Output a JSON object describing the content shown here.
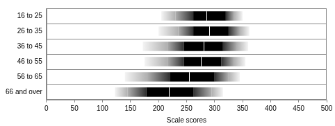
{
  "chart_data": {
    "type": "bar",
    "orientation": "horizontal",
    "x_label": "Scale scores",
    "categories": [
      "16 to 25",
      "26 to 35",
      "36 to 45",
      "46 to 55",
      "56 to 65",
      "66 and over"
    ],
    "p5": [
      205,
      200,
      172,
      175,
      140,
      122
    ],
    "p10": [
      230,
      235,
      215,
      215,
      180,
      145
    ],
    "p25": [
      262,
      262,
      245,
      245,
      220,
      178
    ],
    "median": [
      285,
      290,
      280,
      275,
      255,
      218
    ],
    "p75": [
      320,
      325,
      315,
      312,
      300,
      262
    ],
    "p90": [
      335,
      345,
      340,
      335,
      325,
      295
    ],
    "p95": [
      350,
      362,
      360,
      355,
      345,
      315
    ],
    "color": "#000000",
    "xlim": [
      0,
      500
    ],
    "xticks": [
      0,
      50,
      100,
      150,
      200,
      250,
      300,
      350,
      400,
      450,
      500
    ],
    "grid": true
  }
}
